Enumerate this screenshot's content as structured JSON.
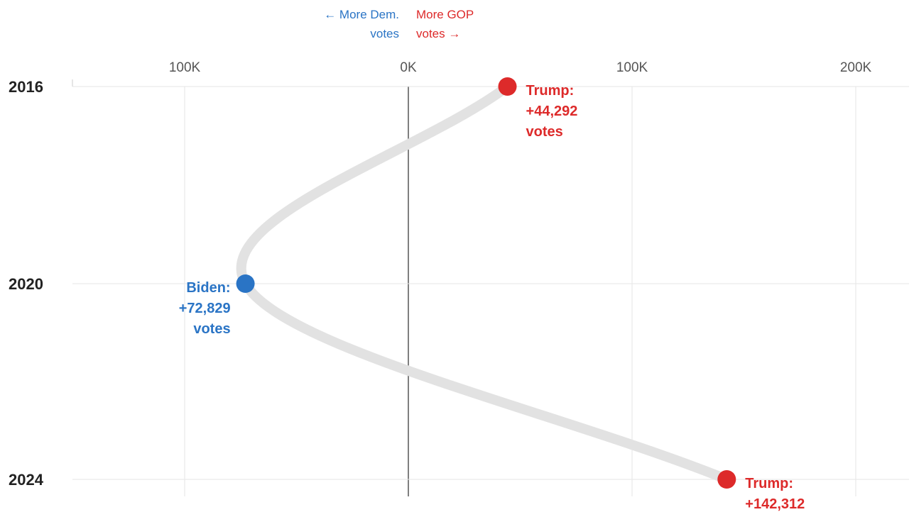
{
  "chart_data": {
    "type": "line",
    "orientation": "horizontal-values-vertical-time",
    "direction_labels": {
      "dem": [
        "← More Dem.",
        "votes"
      ],
      "gop": [
        "More GOP",
        "votes →"
      ]
    },
    "x_ticks": [
      {
        "value": -100000,
        "label": "100K"
      },
      {
        "value": 0,
        "label": "0K"
      },
      {
        "value": 100000,
        "label": "100K"
      },
      {
        "value": 200000,
        "label": "200K"
      }
    ],
    "xlim": [
      -150000,
      225000
    ],
    "years": [
      "2016",
      "2020",
      "2024"
    ],
    "grid": true,
    "series": [
      {
        "points": [
          {
            "year": "2016",
            "margin": 44292,
            "party": "gop",
            "label_lines": [
              "Trump:",
              "+44,292",
              "votes"
            ]
          },
          {
            "year": "2020",
            "margin": -72829,
            "party": "dem",
            "label_lines": [
              "Biden:",
              "+72,829",
              "votes"
            ]
          },
          {
            "year": "2024",
            "margin": 142312,
            "party": "gop",
            "label_lines": [
              "Trump:",
              "+142,312"
            ]
          }
        ]
      }
    ]
  },
  "colors": {
    "dem": "#2a74c5",
    "gop": "#dd2a2a",
    "path": "#e2e2e2",
    "grid": "#e6e6e6",
    "zero_line": "#555555"
  }
}
